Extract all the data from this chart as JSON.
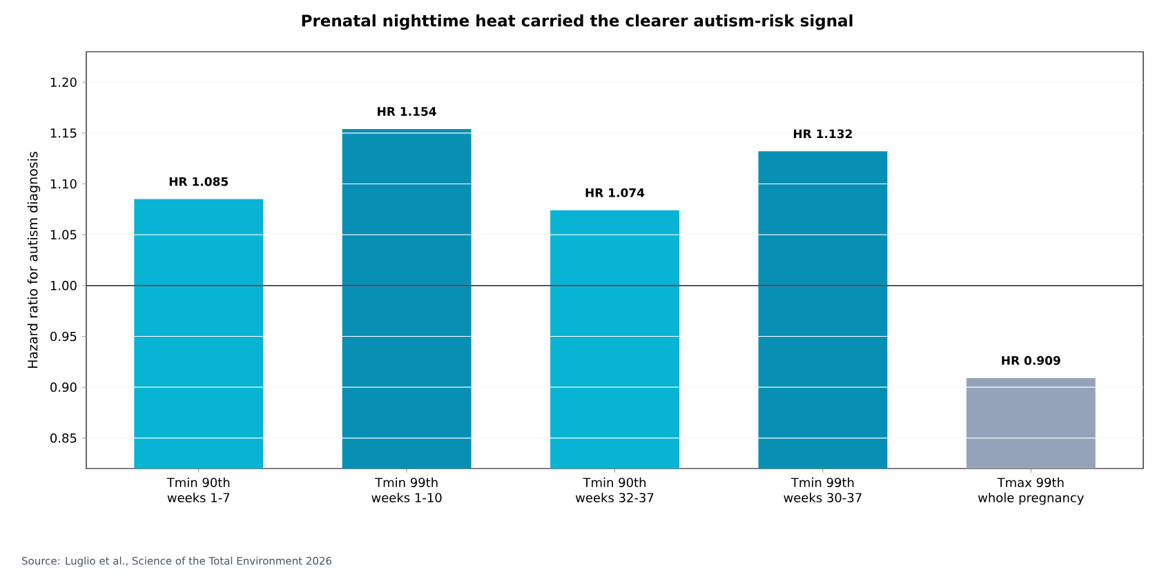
{
  "chart_data": {
    "type": "bar",
    "title": "Prenatal nighttime heat carried the clearer autism-risk signal",
    "ylabel": "Hazard ratio for autism diagnosis",
    "categories": [
      "Tmin 90th\nweeks 1-7",
      "Tmin 99th\nweeks 1-10",
      "Tmin 90th\nweeks 32-37",
      "Tmin 99th\nweeks 30-37",
      "Tmax 99th\nwhole pregnancy"
    ],
    "values": [
      1.085,
      1.154,
      1.074,
      1.132,
      0.909
    ],
    "colors": [
      "#08b4d4",
      "#0890b4",
      "#08b4d4",
      "#0890b4",
      "#94a3b8"
    ],
    "value_labels": [
      "HR 1.085",
      "HR 1.154",
      "HR 1.074",
      "HR 1.132",
      "HR 0.909"
    ],
    "ylim": [
      0.82,
      1.23
    ],
    "yticks": [
      {
        "value": 0.85,
        "label": "0.85"
      },
      {
        "value": 0.9,
        "label": "0.90"
      },
      {
        "value": 0.95,
        "label": "0.95"
      },
      {
        "value": 1.0,
        "label": "1.00"
      },
      {
        "value": 1.05,
        "label": "1.05"
      },
      {
        "value": 1.1,
        "label": "1.10"
      },
      {
        "value": 1.15,
        "label": "1.15"
      },
      {
        "value": 1.2,
        "label": "1.20"
      }
    ],
    "grid": "y",
    "ref_lines": [
      {
        "axis": "y",
        "value": 1.0,
        "color": "#334155"
      }
    ],
    "annotations": [
      "Source: Luglio et al., Science of the Total Environment 2026"
    ]
  }
}
